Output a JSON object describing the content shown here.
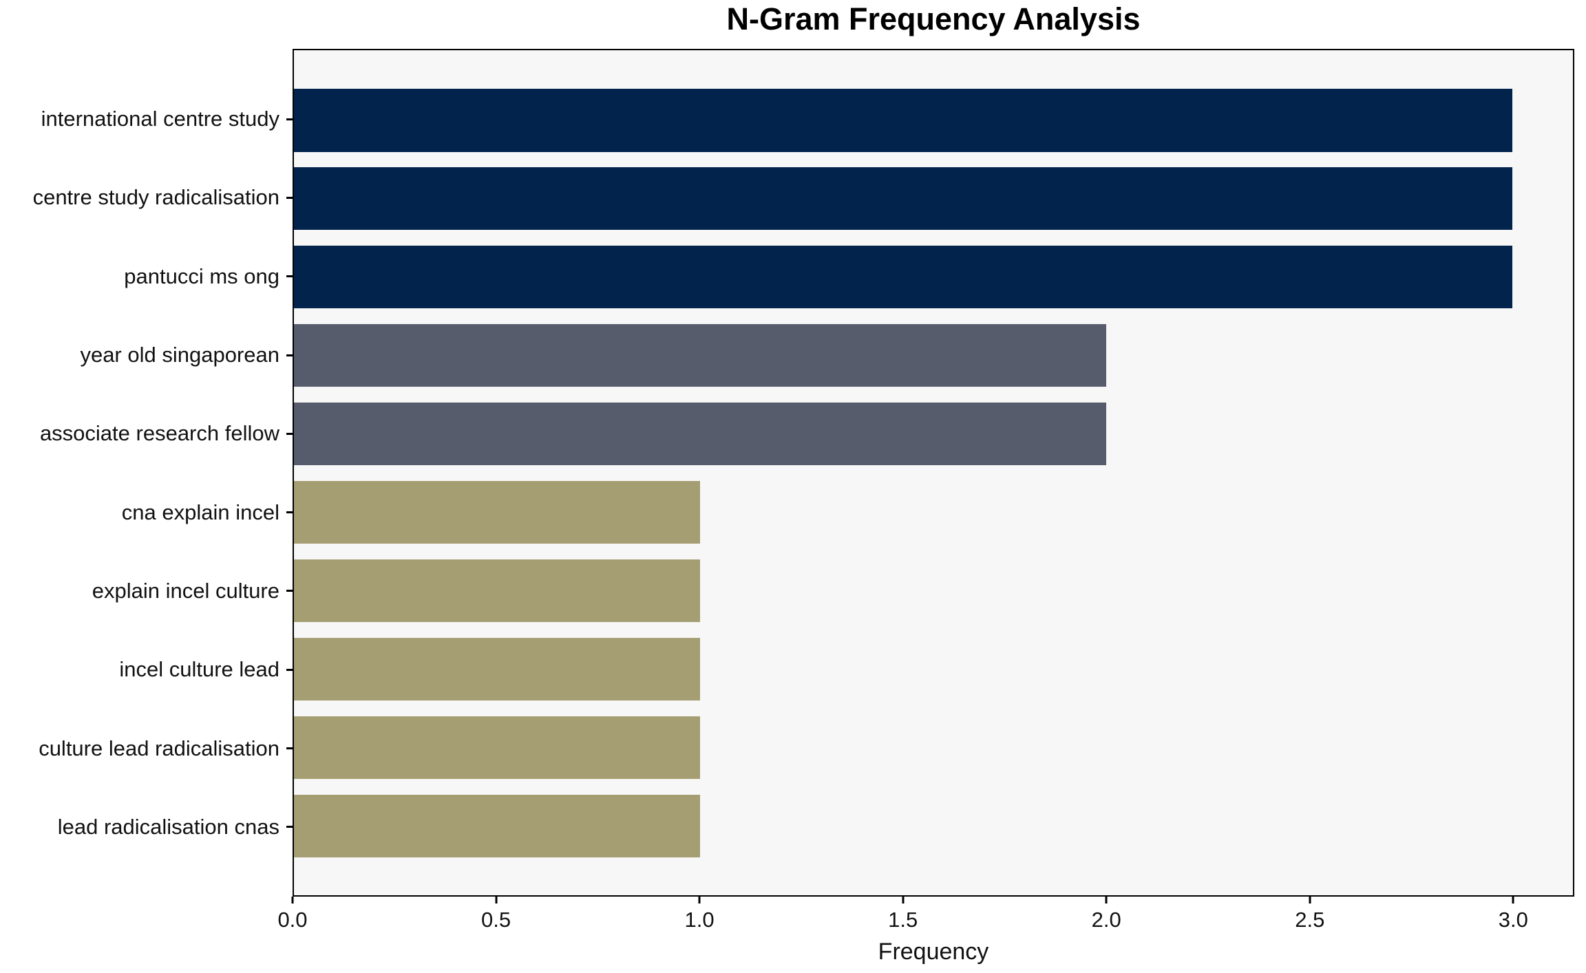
{
  "chart_data": {
    "type": "bar",
    "orientation": "horizontal",
    "title": "N-Gram Frequency Analysis",
    "xlabel": "Frequency",
    "ylabel": "",
    "categories": [
      "international centre study",
      "centre study radicalisation",
      "pantucci ms ong",
      "year old singaporean",
      "associate research fellow",
      "cna explain incel",
      "explain incel culture",
      "incel culture lead",
      "culture lead radicalisation",
      "lead radicalisation cnas"
    ],
    "values": [
      3,
      3,
      3,
      2,
      2,
      1,
      1,
      1,
      1,
      1
    ],
    "bar_colors": [
      "#02234C",
      "#02234C",
      "#02234C",
      "#565C6B",
      "#565C6B",
      "#A69E73",
      "#A69E73",
      "#A69E73",
      "#A69E73",
      "#A69E73"
    ],
    "xlim": [
      0,
      3.15
    ],
    "xticks": [
      0.0,
      0.5,
      1.0,
      1.5,
      2.0,
      2.5,
      3.0
    ],
    "xtick_labels": [
      "0.0",
      "0.5",
      "1.0",
      "1.5",
      "2.0",
      "2.5",
      "3.0"
    ],
    "grid": false,
    "legend": null,
    "colors": {
      "plot_bg": "#F7F7F7",
      "figure_bg": "#FFFFFF",
      "spine": "#000000",
      "text": "#111111"
    }
  }
}
